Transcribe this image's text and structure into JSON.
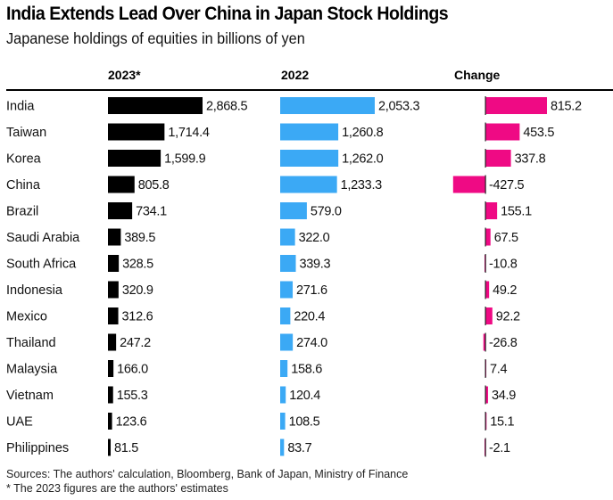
{
  "chart_data": {
    "type": "bar",
    "title": "India Extends Lead Over China in Japan Stock Holdings",
    "subtitle": "Japanese holdings of equities in billions of yen",
    "categories": [
      "India",
      "Taiwan",
      "Korea",
      "China",
      "Brazil",
      "Saudi Arabia",
      "South Africa",
      "Indonesia",
      "Mexico",
      "Thailand",
      "Malaysia",
      "Vietnam",
      "UAE",
      "Philippines"
    ],
    "series": [
      {
        "name": "2023*",
        "color": "#000000",
        "values": [
          2868.5,
          1714.4,
          1599.9,
          805.8,
          734.1,
          389.5,
          328.5,
          320.9,
          312.6,
          247.2,
          166.0,
          155.3,
          123.6,
          81.5
        ],
        "labels": [
          "2,868.5",
          "1,714.4",
          "1,599.9",
          "805.8",
          "734.1",
          "389.5",
          "328.5",
          "320.9",
          "312.6",
          "247.2",
          "166.0",
          "155.3",
          "123.6",
          "81.5"
        ]
      },
      {
        "name": "2022",
        "color": "#3ba9f5",
        "values": [
          2053.3,
          1260.8,
          1262.0,
          1233.3,
          579.0,
          322.0,
          339.3,
          271.6,
          220.4,
          274.0,
          158.6,
          120.4,
          108.5,
          83.7
        ],
        "labels": [
          "2,053.3",
          "1,260.8",
          "1,262.0",
          "1,233.3",
          "579.0",
          "322.0",
          "339.3",
          "271.6",
          "220.4",
          "274.0",
          "158.6",
          "120.4",
          "108.5",
          "83.7"
        ]
      },
      {
        "name": "Change",
        "color": "#ef0a84",
        "values": [
          815.2,
          453.5,
          337.8,
          -427.5,
          155.1,
          67.5,
          -10.8,
          49.2,
          92.2,
          -26.8,
          7.4,
          34.9,
          15.1,
          -2.1
        ],
        "labels": [
          "815.2",
          "453.5",
          "337.8",
          "-427.5",
          "155.1",
          "67.5",
          "-10.8",
          "49.2",
          "92.2",
          "-26.8",
          "7.4",
          "34.9",
          "15.1",
          "-2.1"
        ]
      }
    ],
    "xlabel": "",
    "ylabel": "",
    "grid": false,
    "legend": "column-headers"
  },
  "footer": {
    "sources": "Sources: The authors' calculation, Bloomberg, Bank of Japan, Ministry of Finance",
    "note": "* The 2023 figures are the authors' estimates"
  }
}
